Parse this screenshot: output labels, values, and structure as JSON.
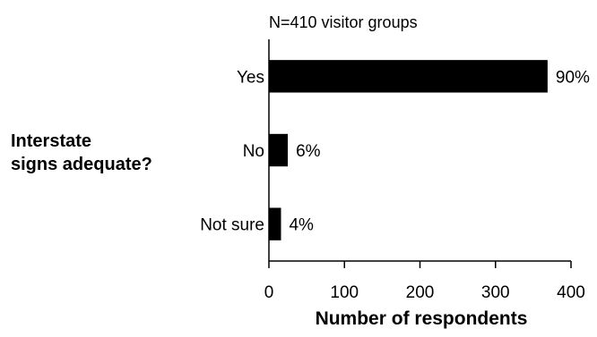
{
  "chart_data": {
    "type": "bar",
    "orientation": "horizontal",
    "subtitle": "N=410 visitor groups",
    "ylabel_lines": [
      "Interstate",
      "signs adequate?"
    ],
    "xlabel": "Number of respondents",
    "categories": [
      "Yes",
      "No",
      "Not sure"
    ],
    "values": [
      369,
      25,
      16
    ],
    "value_labels": [
      "90%",
      "6%",
      "4%"
    ],
    "xlim": [
      0,
      400
    ],
    "xticks": [
      "0",
      "100",
      "200",
      "300",
      "400"
    ],
    "grid": false,
    "bar_color": "#000000"
  }
}
